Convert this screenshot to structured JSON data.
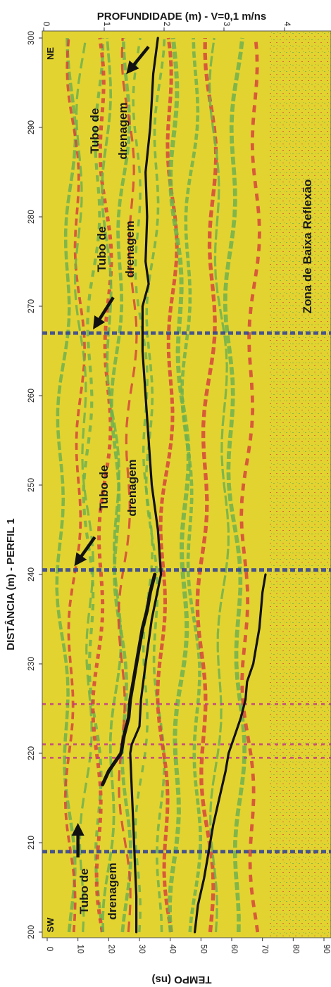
{
  "chart_data": {
    "type": "radargram",
    "titles": {
      "top_axis": "PROFUNDIDADE (m) - V=0,1 m/ns",
      "left_axis": "DISTÂNCIA (m) - PERFIL 1",
      "bottom_axis": "TEMPO (ns)"
    },
    "distance_axis": {
      "range": [
        200,
        300
      ],
      "ticks": [
        "200",
        "210",
        "220",
        "230",
        "240",
        "250",
        "260",
        "270",
        "280",
        "290",
        "300"
      ]
    },
    "time_axis": {
      "range": [
        0,
        97
      ],
      "ticks": [
        "0",
        "10",
        "20",
        "30",
        "40",
        "50",
        "60",
        "70",
        "80",
        "90"
      ]
    },
    "depth_axis": {
      "ticks": [
        "0",
        "1",
        "2",
        "3",
        "4"
      ]
    },
    "colors": {
      "background": "#e2d330",
      "green": "#6fb04f",
      "red": "#d6443c",
      "blue": "#2d3f9c",
      "magenta": "#c23390",
      "interpretation_line": "#111111"
    },
    "annotations": {
      "corner_ne": "NE",
      "corner_sw": "SW",
      "tubo_lines": [
        "Tubo de",
        "drenagem"
      ],
      "zona": "Zona de Baixa Reflexão"
    },
    "horizons": [
      {
        "distance": [
          200,
          204,
          208,
          212,
          216,
          220,
          221,
          223,
          226,
          230,
          235,
          240,
          245,
          250,
          255,
          260,
          265,
          270,
          272.5,
          275,
          280,
          285,
          290,
          293,
          296,
          300
        ],
        "time": [
          29,
          29,
          28.5,
          28,
          27.5,
          27,
          27.5,
          30,
          30.5,
          32,
          34,
          37,
          36,
          34,
          33,
          32,
          31,
          31,
          33,
          32,
          32.5,
          32,
          33.5,
          34,
          34.5,
          36
        ]
      },
      {
        "distance": [
          216.5,
          218,
          220,
          222,
          224,
          226,
          228,
          230,
          232,
          234,
          236,
          238,
          240
        ],
        "time": [
          18,
          20,
          24,
          25,
          26.5,
          27,
          28,
          29,
          30,
          31,
          32.5,
          33.5,
          35
        ]
      },
      {
        "distance": [
          200,
          203,
          206,
          209,
          212,
          215,
          218,
          220,
          222,
          224,
          226,
          228,
          230,
          232,
          234,
          236,
          238,
          240
        ],
        "time": [
          48,
          49,
          51,
          52.5,
          54,
          56,
          58,
          59,
          61,
          63,
          64.5,
          65,
          67,
          68,
          69,
          69.5,
          70,
          71
        ]
      }
    ],
    "high_reflection_distances": [
      209,
      240.5,
      267,
      225.5,
      219.5,
      221
    ],
    "tubo_markers": [
      {
        "distance": 211.5,
        "time": 10
      },
      {
        "distance": 241.5,
        "time": 10
      },
      {
        "distance": 268,
        "time": 16
      },
      {
        "distance": 296.5,
        "time": 27
      }
    ]
  }
}
